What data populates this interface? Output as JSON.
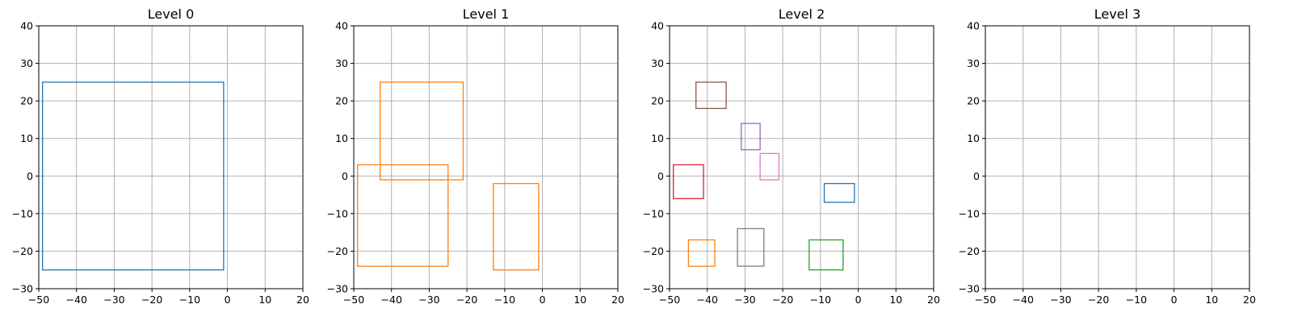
{
  "chart_data": [
    {
      "type": "rectangles",
      "title": "Level 0",
      "xlim": [
        -50,
        20
      ],
      "ylim": [
        -30,
        40
      ],
      "xticks": [
        -50,
        -40,
        -30,
        -20,
        -10,
        0,
        10,
        20
      ],
      "yticks": [
        -30,
        -20,
        -10,
        0,
        10,
        20,
        30,
        40
      ],
      "grid": true,
      "rects": [
        {
          "x0": -49,
          "y0": -25,
          "x1": -1,
          "y1": 25,
          "color": "#1f77b4"
        }
      ]
    },
    {
      "type": "rectangles",
      "title": "Level 1",
      "xlim": [
        -50,
        20
      ],
      "ylim": [
        -30,
        40
      ],
      "xticks": [
        -50,
        -40,
        -30,
        -20,
        -10,
        0,
        10,
        20
      ],
      "yticks": [
        -30,
        -20,
        -10,
        0,
        10,
        20,
        30,
        40
      ],
      "grid": true,
      "rects": [
        {
          "x0": -43,
          "y0": -1,
          "x1": -21,
          "y1": 25,
          "color": "#ff7f0e"
        },
        {
          "x0": -49,
          "y0": -24,
          "x1": -25,
          "y1": 3,
          "color": "#ff7f0e"
        },
        {
          "x0": -13,
          "y0": -25,
          "x1": -1,
          "y1": -2,
          "color": "#ff7f0e"
        }
      ]
    },
    {
      "type": "rectangles",
      "title": "Level 2",
      "xlim": [
        -50,
        20
      ],
      "ylim": [
        -30,
        40
      ],
      "xticks": [
        -50,
        -40,
        -30,
        -20,
        -10,
        0,
        10,
        20
      ],
      "yticks": [
        -30,
        -20,
        -10,
        0,
        10,
        20,
        30,
        40
      ],
      "grid": true,
      "rects": [
        {
          "x0": -43,
          "y0": 18,
          "x1": -35,
          "y1": 25,
          "color": "#8c564b"
        },
        {
          "x0": -31,
          "y0": 7,
          "x1": -26,
          "y1": 14,
          "color": "#9467bd"
        },
        {
          "x0": -26,
          "y0": -1,
          "x1": -21,
          "y1": 6,
          "color": "#e377c2"
        },
        {
          "x0": -49,
          "y0": -6,
          "x1": -41,
          "y1": 3,
          "color": "#d62728"
        },
        {
          "x0": -9,
          "y0": -7,
          "x1": -1,
          "y1": -2,
          "color": "#1f77b4"
        },
        {
          "x0": -45,
          "y0": -24,
          "x1": -38,
          "y1": -17,
          "color": "#ff7f0e"
        },
        {
          "x0": -32,
          "y0": -24,
          "x1": -25,
          "y1": -14,
          "color": "#7f7f7f"
        },
        {
          "x0": -13,
          "y0": -25,
          "x1": -4,
          "y1": -17,
          "color": "#2ca02c"
        }
      ]
    },
    {
      "type": "rectangles",
      "title": "Level 3",
      "xlim": [
        -50,
        20
      ],
      "ylim": [
        -30,
        40
      ],
      "xticks": [
        -50,
        -40,
        -30,
        -20,
        -10,
        0,
        10,
        20
      ],
      "yticks": [
        -30,
        -20,
        -10,
        0,
        10,
        20,
        30,
        40
      ],
      "grid": true,
      "rects": []
    }
  ]
}
